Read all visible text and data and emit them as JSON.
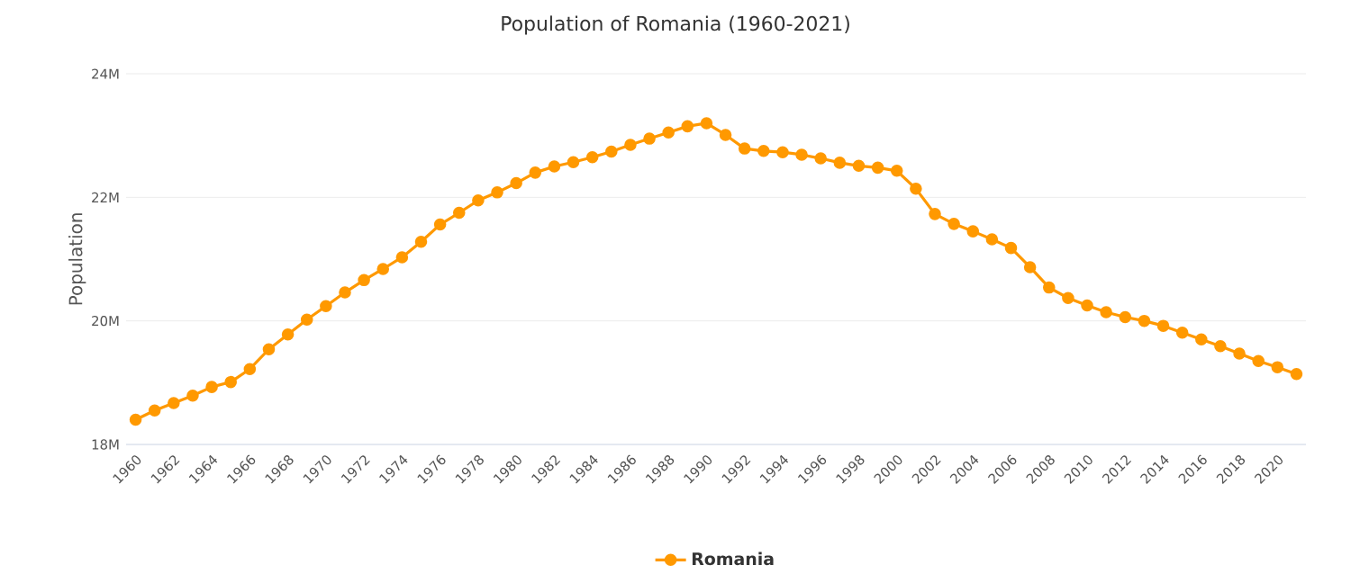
{
  "chart_data": {
    "type": "line",
    "title": "Population of Romania (1960-2021)",
    "ylabel": "Population",
    "x": [
      1960,
      1961,
      1962,
      1963,
      1964,
      1965,
      1966,
      1967,
      1968,
      1969,
      1970,
      1971,
      1972,
      1973,
      1974,
      1975,
      1976,
      1977,
      1978,
      1979,
      1980,
      1981,
      1982,
      1983,
      1984,
      1985,
      1986,
      1987,
      1988,
      1989,
      1990,
      1991,
      1992,
      1993,
      1994,
      1995,
      1996,
      1997,
      1998,
      1999,
      2000,
      2001,
      2002,
      2003,
      2004,
      2005,
      2006,
      2007,
      2008,
      2009,
      2010,
      2011,
      2012,
      2013,
      2014,
      2015,
      2016,
      2017,
      2018,
      2019,
      2020,
      2021
    ],
    "series": [
      {
        "name": "Romania",
        "color": "#ff9900",
        "values": [
          18400000,
          18550000,
          18670000,
          18790000,
          18930000,
          19010000,
          19220000,
          19540000,
          19780000,
          20020000,
          20240000,
          20460000,
          20660000,
          20840000,
          21030000,
          21280000,
          21560000,
          21750000,
          21950000,
          22080000,
          22230000,
          22400000,
          22500000,
          22570000,
          22650000,
          22740000,
          22850000,
          22950000,
          23050000,
          23150000,
          23200000,
          23010000,
          22790000,
          22750000,
          22730000,
          22690000,
          22630000,
          22560000,
          22510000,
          22480000,
          22430000,
          22140000,
          21730000,
          21570000,
          21450000,
          21320000,
          21180000,
          20870000,
          20540000,
          20370000,
          20250000,
          20140000,
          20060000,
          20000000,
          19920000,
          19810000,
          19700000,
          19590000,
          19470000,
          19350000,
          19250000,
          19140000
        ]
      }
    ],
    "xlim": [
      1959.5,
      2021.5
    ],
    "ylim": [
      18000000,
      24000000
    ],
    "xticks": [
      1960,
      1962,
      1964,
      1966,
      1968,
      1970,
      1972,
      1974,
      1976,
      1978,
      1980,
      1982,
      1984,
      1986,
      1988,
      1990,
      1992,
      1994,
      1996,
      1998,
      2000,
      2002,
      2004,
      2006,
      2008,
      2010,
      2012,
      2014,
      2016,
      2018,
      2020
    ],
    "yticks": [
      {
        "value": 18000000,
        "label": "18M"
      },
      {
        "value": 20000000,
        "label": "20M"
      },
      {
        "value": 22000000,
        "label": "22M"
      },
      {
        "value": 24000000,
        "label": "24M"
      }
    ],
    "grid": "y",
    "legend": "bottom",
    "marker": "circle"
  }
}
